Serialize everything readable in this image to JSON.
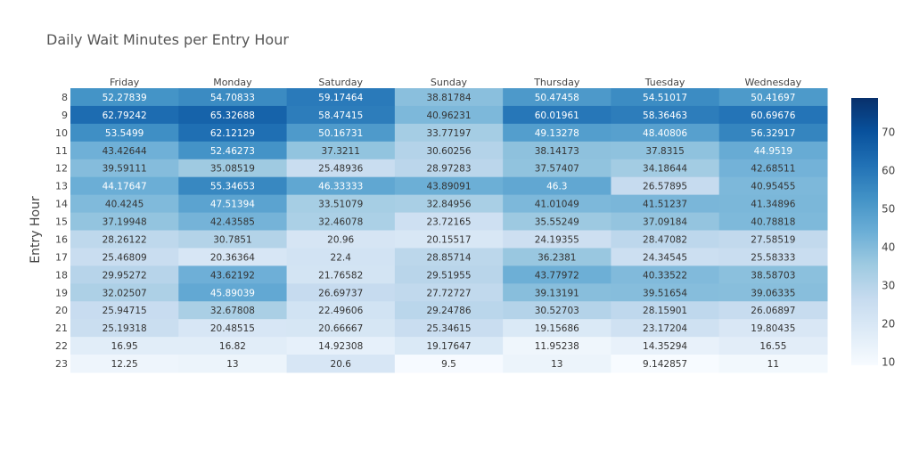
{
  "chart_data": {
    "type": "heatmap",
    "title": "Daily Wait Minutes per Entry Hour",
    "xlabel": "",
    "ylabel": "Entry Hour",
    "x": [
      "Friday",
      "Monday",
      "Saturday",
      "Sunday",
      "Thursday",
      "Tuesday",
      "Wednesday"
    ],
    "y": [
      "8",
      "9",
      "10",
      "11",
      "12",
      "13",
      "14",
      "15",
      "16",
      "17",
      "18",
      "19",
      "20",
      "21",
      "22",
      "23"
    ],
    "values_text": [
      [
        "52.27839",
        "54.70833",
        "59.17464",
        "38.81784",
        "50.47458",
        "54.51017",
        "50.41697"
      ],
      [
        "62.79242",
        "65.32688",
        "58.47415",
        "40.96231",
        "60.01961",
        "58.36463",
        "60.69676"
      ],
      [
        "53.5499",
        "62.12129",
        "50.16731",
        "33.77197",
        "49.13278",
        "48.40806",
        "56.32917"
      ],
      [
        "43.42644",
        "52.46273",
        "37.3211",
        "30.60256",
        "38.14173",
        "37.8315",
        "44.9519"
      ],
      [
        "39.59111",
        "35.08519",
        "25.48936",
        "28.97283",
        "37.57407",
        "34.18644",
        "42.68511"
      ],
      [
        "44.17647",
        "55.34653",
        "46.33333",
        "43.89091",
        "46.3",
        "26.57895",
        "40.95455"
      ],
      [
        "40.4245",
        "47.51394",
        "33.51079",
        "32.84956",
        "41.01049",
        "41.51237",
        "41.34896"
      ],
      [
        "37.19948",
        "42.43585",
        "32.46078",
        "23.72165",
        "35.55249",
        "37.09184",
        "40.78818"
      ],
      [
        "28.26122",
        "30.7851",
        "20.96",
        "20.15517",
        "24.19355",
        "28.47082",
        "27.58519"
      ],
      [
        "25.46809",
        "20.36364",
        "22.4",
        "28.85714",
        "36.2381",
        "24.34545",
        "25.58333"
      ],
      [
        "29.95272",
        "43.62192",
        "21.76582",
        "29.51955",
        "43.77972",
        "40.33522",
        "38.58703"
      ],
      [
        "32.02507",
        "45.89039",
        "26.69737",
        "27.72727",
        "39.13191",
        "39.51654",
        "39.06335"
      ],
      [
        "25.94715",
        "32.67808",
        "22.49606",
        "29.24786",
        "30.52703",
        "28.15901",
        "26.06897"
      ],
      [
        "25.19318",
        "20.48515",
        "20.66667",
        "25.34615",
        "19.15686",
        "23.17204",
        "19.80435"
      ],
      [
        "16.95",
        "16.82",
        "14.92308",
        "19.17647",
        "11.95238",
        "14.35294",
        "16.55"
      ],
      [
        "12.25",
        "13",
        "20.6",
        "9.5",
        "13",
        "9.142857",
        "11"
      ]
    ],
    "colorscale": "Blues",
    "zmin": 9.142857,
    "zmax": 79,
    "colorbar_ticks": [
      "10",
      "20",
      "30",
      "40",
      "50",
      "60",
      "70"
    ],
    "colorbar_tick_values": [
      10,
      20,
      30,
      40,
      50,
      60,
      70
    ],
    "legend_position": "right"
  }
}
